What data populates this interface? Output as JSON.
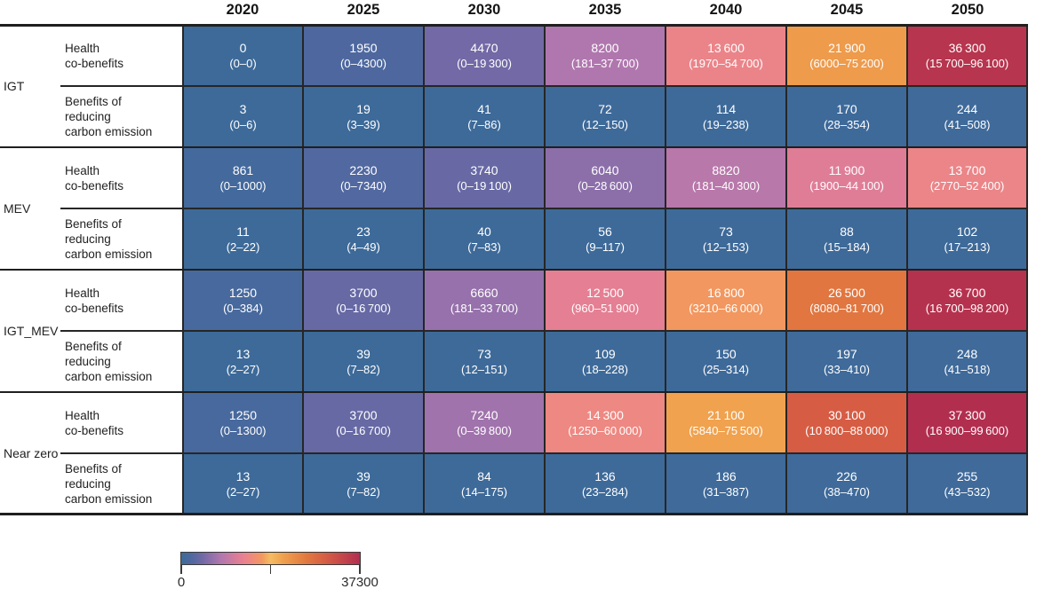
{
  "colors": {
    "ink": "#1a1a1a",
    "cell_text": "#ffffff",
    "grid_line": "#262626",
    "rule_line": "#1f1f1f"
  },
  "chart_data": {
    "type": "heatmap",
    "columns": [
      "2020",
      "2025",
      "2030",
      "2035",
      "2040",
      "2045",
      "2050"
    ],
    "row_groups": [
      {
        "scenario": "IGT",
        "metrics": [
          {
            "name": "Health co-benefits",
            "name_lines": [
              "Health",
              "co-benefits"
            ],
            "values": [
              0,
              1950,
              4470,
              8200,
              13600,
              21900,
              36300
            ],
            "display": [
              "0",
              "1950",
              "4470",
              "8200",
              "13 600",
              "21 900",
              "36 300"
            ],
            "ranges": [
              "(0–0)",
              "(0–4300)",
              "(0–19 300)",
              "(181–37 700)",
              "(1970–54 700)",
              "(6000–75 200)",
              "(15 700–96 100)"
            ]
          },
          {
            "name": "Benefits of reducing carbon emission",
            "name_lines": [
              "Benefits of",
              "reducing",
              "carbon emission"
            ],
            "values": [
              3,
              19,
              41,
              72,
              114,
              170,
              244
            ],
            "display": [
              "3",
              "19",
              "41",
              "72",
              "114",
              "170",
              "244"
            ],
            "ranges": [
              "(0–6)",
              "(3–39)",
              "(7–86)",
              "(12–150)",
              "(19–238)",
              "(28–354)",
              "(41–508)"
            ]
          }
        ]
      },
      {
        "scenario": "MEV",
        "metrics": [
          {
            "name": "Health co-benefits",
            "name_lines": [
              "Health",
              "co-benefits"
            ],
            "values": [
              861,
              2230,
              3740,
              6040,
              8820,
              11900,
              13700
            ],
            "display": [
              "861",
              "2230",
              "3740",
              "6040",
              "8820",
              "11 900",
              "13 700"
            ],
            "ranges": [
              "(0–1000)",
              "(0–7340)",
              "(0–19 100)",
              "(0–28 600)",
              "(181–40 300)",
              "(1900–44 100)",
              "(2770–52 400)"
            ]
          },
          {
            "name": "Benefits of reducing carbon emission",
            "name_lines": [
              "Benefits of",
              "reducing",
              "carbon emission"
            ],
            "values": [
              11,
              23,
              40,
              56,
              73,
              88,
              102
            ],
            "display": [
              "11",
              "23",
              "40",
              "56",
              "73",
              "88",
              "102"
            ],
            "ranges": [
              "(2–22)",
              "(4–49)",
              "(7–83)",
              "(9–117)",
              "(12–153)",
              "(15–184)",
              "(17–213)"
            ]
          }
        ]
      },
      {
        "scenario": "IGT_MEV",
        "metrics": [
          {
            "name": "Health co-benefits",
            "name_lines": [
              "Health",
              "co-benefits"
            ],
            "values": [
              1250,
              3700,
              6660,
              12500,
              16800,
              26500,
              36700
            ],
            "display": [
              "1250",
              "3700",
              "6660",
              "12 500",
              "16 800",
              "26 500",
              "36 700"
            ],
            "ranges": [
              "(0–384)",
              "(0–16 700)",
              "(181–33 700)",
              "(960–51 900)",
              "(3210–66 000)",
              "(8080–81 700)",
              "(16 700–98 200)"
            ]
          },
          {
            "name": "Benefits of reducing carbon emission",
            "name_lines": [
              "Benefits of",
              "reducing",
              "carbon emission"
            ],
            "values": [
              13,
              39,
              73,
              109,
              150,
              197,
              248
            ],
            "display": [
              "13",
              "39",
              "73",
              "109",
              "150",
              "197",
              "248"
            ],
            "ranges": [
              "(2–27)",
              "(7–82)",
              "(12–151)",
              "(18–228)",
              "(25–314)",
              "(33–410)",
              "(41–518)"
            ]
          }
        ]
      },
      {
        "scenario": "Near zero",
        "metrics": [
          {
            "name": "Health co-benefits",
            "name_lines": [
              "Health",
              "co-benefits"
            ],
            "values": [
              1250,
              3700,
              7240,
              14300,
              21100,
              30100,
              37300
            ],
            "display": [
              "1250",
              "3700",
              "7240",
              "14 300",
              "21 100",
              "30 100",
              "37 300"
            ],
            "ranges": [
              "(0–1300)",
              "(0–16 700)",
              "(0–39 800)",
              "(1250–60 000)",
              "(5840–75 500)",
              "(10 800–88 000)",
              "(16 900–99 600)"
            ]
          },
          {
            "name": "Benefits of reducing carbon emission",
            "name_lines": [
              "Benefits of",
              "reducing",
              "carbon emission"
            ],
            "values": [
              13,
              39,
              84,
              136,
              186,
              226,
              255
            ],
            "display": [
              "13",
              "39",
              "84",
              "136",
              "186",
              "226",
              "255"
            ],
            "ranges": [
              "(2–27)",
              "(7–82)",
              "(14–175)",
              "(23–284)",
              "(31–387)",
              "(38–470)",
              "(43–532)"
            ]
          }
        ]
      }
    ],
    "color_scale": {
      "min": 0,
      "max": 37300,
      "min_label": "0",
      "max_label": "37300",
      "stops": [
        {
          "pos": 0.0,
          "color": "#3d6a99"
        },
        {
          "pos": 0.05,
          "color": "#4d689f"
        },
        {
          "pos": 0.12,
          "color": "#7269a6"
        },
        {
          "pos": 0.22,
          "color": "#b077ae"
        },
        {
          "pos": 0.33,
          "color": "#e47e95"
        },
        {
          "pos": 0.38,
          "color": "#ee8784"
        },
        {
          "pos": 0.45,
          "color": "#f2975f"
        },
        {
          "pos": 0.5,
          "color": "#f4bc62"
        },
        {
          "pos": 0.57,
          "color": "#f0a04e"
        },
        {
          "pos": 0.7,
          "color": "#e27940"
        },
        {
          "pos": 0.82,
          "color": "#d45a45"
        },
        {
          "pos": 1.0,
          "color": "#b22e4f"
        }
      ]
    }
  }
}
